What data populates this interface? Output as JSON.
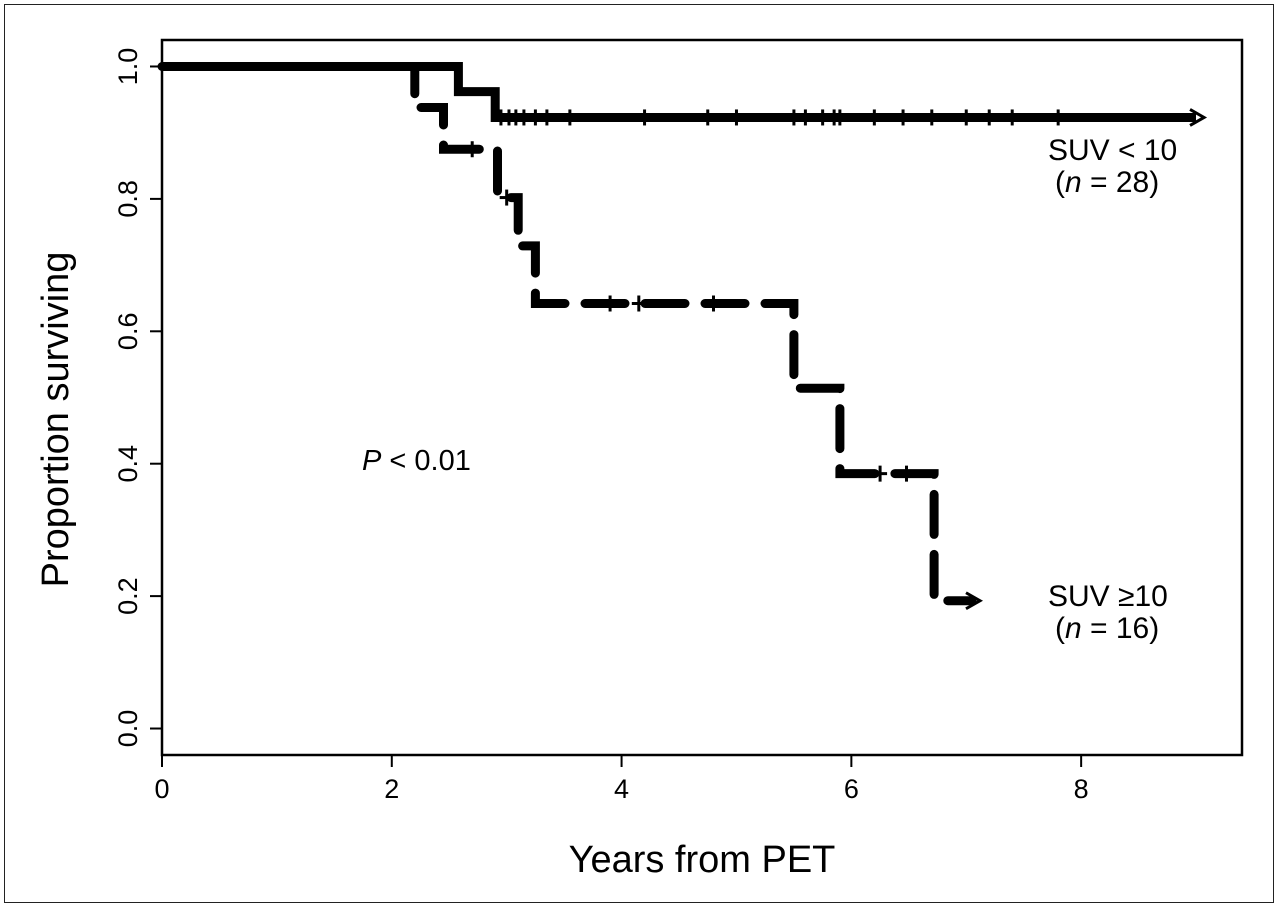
{
  "chart_data": {
    "type": "line",
    "xlabel": "Years from PET",
    "ylabel": "Proportion surviving",
    "xlim": [
      0,
      9.4
    ],
    "ylim": [
      -0.04,
      1.04
    ],
    "xticks": [
      "0",
      "2",
      "4",
      "6",
      "8"
    ],
    "yticks": [
      "0.0",
      "0.2",
      "0.4",
      "0.6",
      "0.8",
      "1.0"
    ],
    "grid": false,
    "annotation_prefix": "P",
    "annotation_rest": " < 0.01",
    "series": [
      {
        "name_line1": "SUV < 10",
        "name_line2_n": "n",
        "name_line2_rest": " = 28)",
        "style": "solid",
        "color": "#000000",
        "steps": [
          [
            0,
            1.0
          ],
          [
            2.2,
            1.0
          ],
          [
            2.2,
            1.0
          ],
          [
            2.58,
            1.0
          ],
          [
            2.58,
            0.962
          ],
          [
            2.9,
            0.962
          ],
          [
            2.9,
            0.923
          ],
          [
            9.0,
            0.923
          ]
        ],
        "censored_x": [
          2.95,
          3.02,
          3.08,
          3.15,
          3.25,
          3.35,
          3.55,
          4.2,
          4.75,
          5.0,
          5.5,
          5.6,
          5.75,
          5.85,
          5.9,
          6.2,
          6.45,
          6.7,
          7.0,
          7.2,
          7.4,
          7.8
        ]
      },
      {
        "name_line1": "SUV ≥10",
        "name_line2_n": "n",
        "name_line2_rest": " = 16)",
        "style": "dashed",
        "color": "#000000",
        "steps": [
          [
            0,
            1.0
          ],
          [
            2.2,
            1.0
          ],
          [
            2.2,
            0.938
          ],
          [
            2.45,
            0.938
          ],
          [
            2.45,
            0.875
          ],
          [
            2.92,
            0.875
          ],
          [
            2.92,
            0.802
          ],
          [
            3.1,
            0.802
          ],
          [
            3.1,
            0.729
          ],
          [
            3.25,
            0.729
          ],
          [
            3.25,
            0.642
          ],
          [
            5.5,
            0.642
          ],
          [
            5.5,
            0.514
          ],
          [
            5.9,
            0.514
          ],
          [
            5.9,
            0.385
          ],
          [
            6.72,
            0.385
          ],
          [
            6.72,
            0.193
          ],
          [
            7.05,
            0.193
          ]
        ],
        "censored_x": [
          2.7,
          3.0,
          3.9,
          4.15,
          4.8,
          6.25,
          6.48
        ]
      }
    ]
  }
}
